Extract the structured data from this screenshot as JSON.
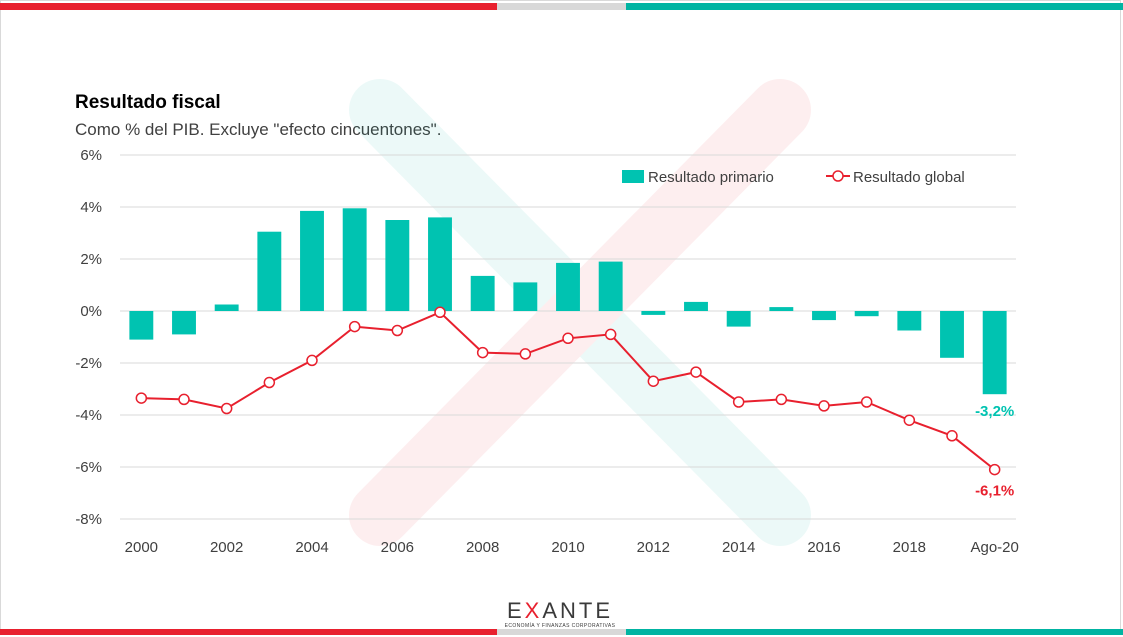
{
  "brand": {
    "colors": {
      "red": "#e8202e",
      "teal": "#00b4a2",
      "gray": "#d8d8d8"
    },
    "logo": {
      "prefix": "E",
      "accent": "X",
      "suffix": "ANTE",
      "tagline": "ECONOMÍA Y FINANZAS CORPORATIVAS"
    }
  },
  "chart_data": {
    "type": "bar",
    "title": "Resultado fiscal",
    "subtitle": "Como % del PIB. Excluye \"efecto cincuentones\".",
    "categories": [
      "2000",
      "2001",
      "2002",
      "2003",
      "2004",
      "2005",
      "2006",
      "2007",
      "2008",
      "2009",
      "2010",
      "2011",
      "2012",
      "2013",
      "2014",
      "2015",
      "2016",
      "2017",
      "2018",
      "2019",
      "Ago-20"
    ],
    "x_tick_labels": [
      "2000",
      "",
      "2002",
      "",
      "2004",
      "",
      "2006",
      "",
      "2008",
      "",
      "2010",
      "",
      "2012",
      "",
      "2014",
      "",
      "2016",
      "",
      "2018",
      "",
      "Ago-20"
    ],
    "ylim": [
      -8,
      6
    ],
    "y_ticks": [
      6,
      4,
      2,
      0,
      -2,
      -4,
      -6,
      -8
    ],
    "y_tick_labels": [
      "6%",
      "4%",
      "2%",
      "0%",
      "-2%",
      "-4%",
      "-6%",
      "-8%"
    ],
    "grid": true,
    "legend_position": "top-right",
    "series": [
      {
        "name": "Resultado primario",
        "kind": "bar",
        "color": "#00c3b1",
        "values": [
          -1.1,
          -0.9,
          0.25,
          3.05,
          3.85,
          3.95,
          3.5,
          3.6,
          1.35,
          1.1,
          1.85,
          1.9,
          -0.15,
          0.35,
          -0.6,
          0.15,
          -0.35,
          -0.2,
          -0.75,
          -1.8,
          -3.2
        ]
      },
      {
        "name": "Resultado global",
        "kind": "line",
        "color": "#e8202e",
        "values": [
          -3.35,
          -3.4,
          -3.75,
          -2.75,
          -1.9,
          -0.6,
          -0.75,
          -0.05,
          -1.6,
          -1.65,
          -1.05,
          -0.9,
          -2.7,
          -2.35,
          -3.5,
          -3.4,
          -3.65,
          -3.5,
          -4.2,
          -4.8,
          -6.1
        ]
      }
    ],
    "annotations": [
      {
        "series": 0,
        "index": 20,
        "text": "-3,2%"
      },
      {
        "series": 1,
        "index": 20,
        "text": "-6,1%"
      }
    ]
  }
}
